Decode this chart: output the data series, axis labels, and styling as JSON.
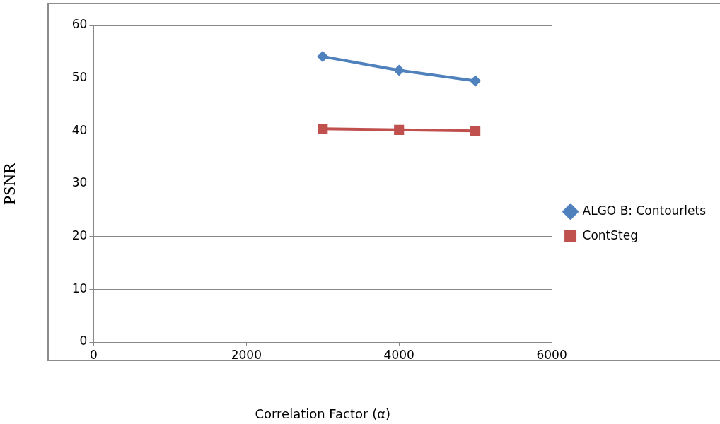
{
  "chart_data": {
    "type": "line",
    "xlabel": "Correlation Factor (α)",
    "ylabel": "PSNR",
    "x": [
      3000,
      4000,
      5000
    ],
    "series": [
      {
        "name": "ALGO B: Contourlets",
        "color": "#4f81bd",
        "values": [
          54.1,
          51.5,
          49.5
        ],
        "marker": "diamond"
      },
      {
        "name": "ContSteg",
        "color": "#c0504d",
        "values": [
          40.4,
          40.2,
          40.0
        ],
        "marker": "square"
      }
    ],
    "xlim": [
      0,
      6000
    ],
    "xticks": [
      0,
      2000,
      4000,
      6000
    ],
    "ylim": [
      0,
      60
    ],
    "yticks": [
      0,
      10,
      20,
      30,
      40,
      50,
      60
    ],
    "grid": "y",
    "legend": "right",
    "line_style": "solid"
  }
}
